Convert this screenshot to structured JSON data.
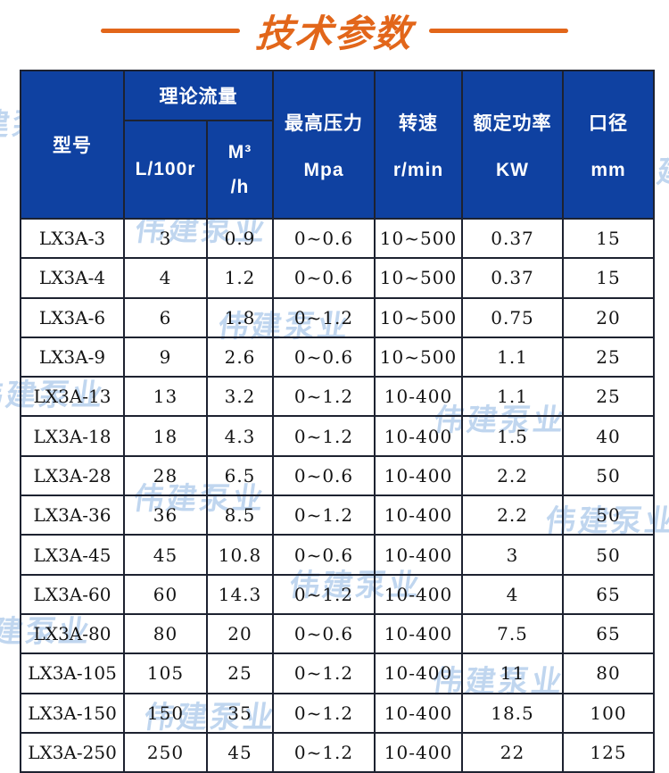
{
  "title": "技术参数",
  "watermark_text": "伟建泵业",
  "colors": {
    "accent_orange": "#E2661A",
    "header_bg": "#0F41A1",
    "header_text": "#FFFFFF",
    "border": "#1D2230",
    "watermark": "#A9C7EA",
    "body_text": "#141414"
  },
  "table": {
    "headers": {
      "model": "型号",
      "flow_group": "理论流量",
      "flow_l100r": "L/100r",
      "flow_m3_line1": "M³",
      "flow_m3_line2": "/h",
      "pressure_line1": "最高压力",
      "pressure_line2": "Mpa",
      "speed_line1": "转速",
      "speed_line2": "r/min",
      "power_line1": "额定功率",
      "power_line2": "KW",
      "diameter_line1": "口径",
      "diameter_line2": "mm"
    },
    "rows": [
      {
        "model": "LX3A-3",
        "l100r": "3",
        "m3h": "0.9",
        "pressure": "0~0.6",
        "speed": "10~500",
        "power": "0.37",
        "diameter": "15"
      },
      {
        "model": "LX3A-4",
        "l100r": "4",
        "m3h": "1.2",
        "pressure": "0~0.6",
        "speed": "10~500",
        "power": "0.37",
        "diameter": "15"
      },
      {
        "model": "LX3A-6",
        "l100r": "6",
        "m3h": "1.8",
        "pressure": "0~1.2",
        "speed": "10~500",
        "power": "0.75",
        "diameter": "20"
      },
      {
        "model": "LX3A-9",
        "l100r": "9",
        "m3h": "2.6",
        "pressure": "0~0.6",
        "speed": "10~500",
        "power": "1.1",
        "diameter": "25"
      },
      {
        "model": "LX3A-13",
        "l100r": "13",
        "m3h": "3.2",
        "pressure": "0~1.2",
        "speed": "10-400",
        "power": "1.1",
        "diameter": "25"
      },
      {
        "model": "LX3A-18",
        "l100r": "18",
        "m3h": "4.3",
        "pressure": "0~1.2",
        "speed": "10-400",
        "power": "1.5",
        "diameter": "40"
      },
      {
        "model": "LX3A-28",
        "l100r": "28",
        "m3h": "6.5",
        "pressure": "0~0.6",
        "speed": "10-400",
        "power": "2.2",
        "diameter": "50"
      },
      {
        "model": "LX3A-36",
        "l100r": "36",
        "m3h": "8.5",
        "pressure": "0~1.2",
        "speed": "10-400",
        "power": "2.2",
        "diameter": "50"
      },
      {
        "model": "LX3A-45",
        "l100r": "45",
        "m3h": "10.8",
        "pressure": "0~0.6",
        "speed": "10-400",
        "power": "3",
        "diameter": "50"
      },
      {
        "model": "LX3A-60",
        "l100r": "60",
        "m3h": "14.3",
        "pressure": "0~1.2",
        "speed": "10-400",
        "power": "4",
        "diameter": "65"
      },
      {
        "model": "LX3A-80",
        "l100r": "80",
        "m3h": "20",
        "pressure": "0~0.6",
        "speed": "10-400",
        "power": "7.5",
        "diameter": "65"
      },
      {
        "model": "LX3A-105",
        "l100r": "105",
        "m3h": "25",
        "pressure": "0~1.2",
        "speed": "10-400",
        "power": "11",
        "diameter": "80"
      },
      {
        "model": "LX3A-150",
        "l100r": "150",
        "m3h": "35",
        "pressure": "0~1.2",
        "speed": "10-400",
        "power": "18.5",
        "diameter": "100"
      },
      {
        "model": "LX3A-250",
        "l100r": "250",
        "m3h": "45",
        "pressure": "0~1.2",
        "speed": "10-400",
        "power": "22",
        "diameter": "125"
      }
    ]
  }
}
